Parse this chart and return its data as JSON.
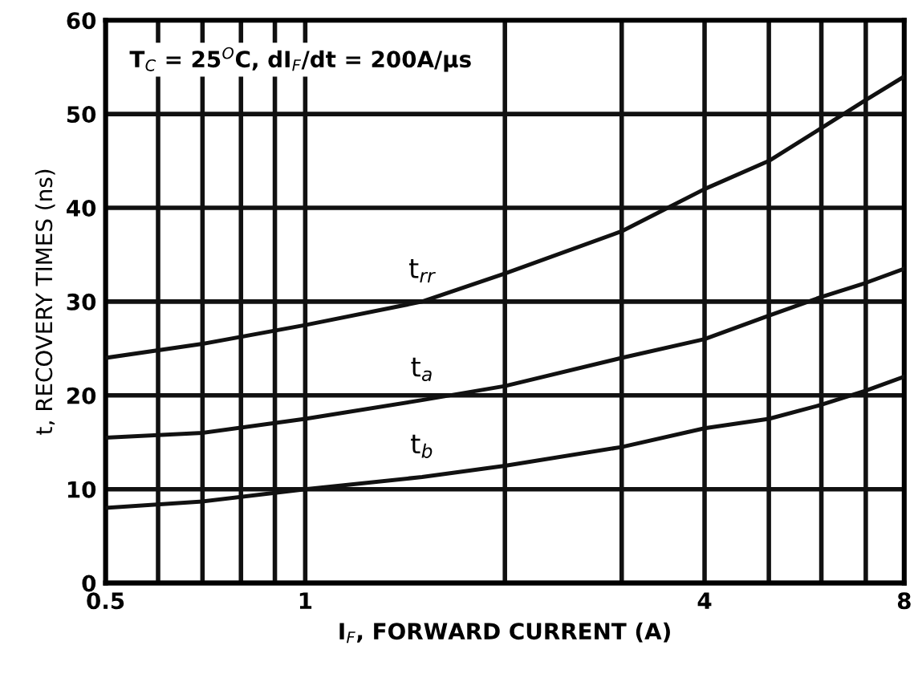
{
  "chart_data": {
    "type": "line",
    "xlabel": "I$_{F}$, FORWARD CURRENT (A)",
    "ylabel": "t, RECOVERY TIMES (ns)",
    "log": "x",
    "x": [
      0.5,
      0.7,
      1,
      1.5,
      2,
      3,
      4,
      5,
      6,
      7,
      8
    ],
    "series": [
      {
        "name": "t$_{rr}$",
        "color": "#111111",
        "values": [
          24,
          25.5,
          27.5,
          30,
          33,
          37.5,
          42,
          45,
          48.5,
          51.5,
          54
        ]
      },
      {
        "name": "t$_{a}$",
        "color": "#111111",
        "values": [
          15.5,
          16,
          17.5,
          19.5,
          21,
          24,
          26,
          28.5,
          30.5,
          32,
          33.5
        ]
      },
      {
        "name": "t$_{b}$",
        "color": "#111111",
        "values": [
          8,
          8.7,
          10,
          11.3,
          12.5,
          14.5,
          16.5,
          17.5,
          19,
          20.5,
          22
        ]
      }
    ],
    "xlim": [
      0.5,
      8
    ],
    "ylim": [
      0,
      60
    ],
    "xticks": [
      0.5,
      {
        "value": 0.6,
        "label": null
      },
      {
        "value": 0.7,
        "label": null
      },
      {
        "value": 0.8,
        "label": null
      },
      {
        "value": 0.9,
        "label": null
      },
      1,
      {
        "value": 2,
        "label": null
      },
      {
        "value": 3,
        "label": null
      },
      4,
      {
        "value": 5,
        "label": null
      },
      {
        "value": 6,
        "label": null
      },
      {
        "value": 7,
        "label": null
      },
      8
    ],
    "yticks": [
      0,
      10,
      20,
      30,
      40,
      50,
      60
    ],
    "grid": true,
    "marker": "none",
    "line_style": "solid",
    "annotations": [
      "T$_{C}$ = 25$^{O}$C, dI$_{F}$/dt = 200A/µs"
    ]
  }
}
